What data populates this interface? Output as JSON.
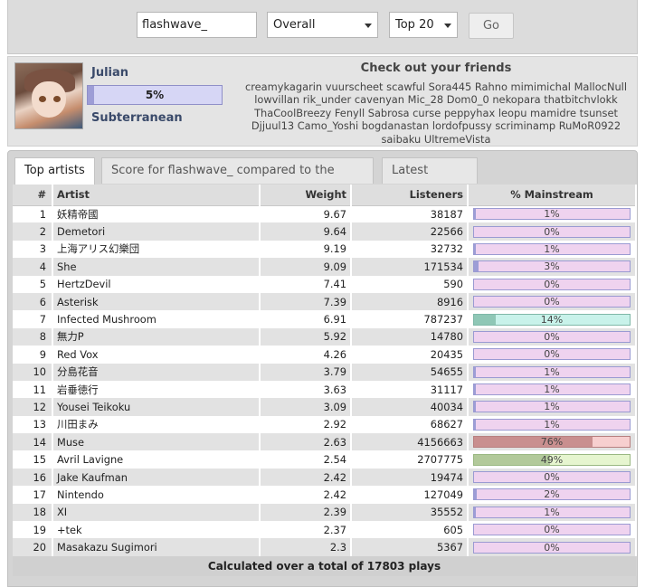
{
  "search": {
    "username": "flashwave_",
    "period": "Overall",
    "limit": "Top 20",
    "go_label": "Go"
  },
  "profile": {
    "name": "Julian",
    "mainstream_percent": "5%",
    "mainstream_fraction": 0.05,
    "rank": "Subterranean",
    "avatar": "anime-avatar"
  },
  "friends": {
    "title": "Check out your friends",
    "names": "creamykagarin vuurscheet scawful Sora445 Rahno mimimichal MallocNull lowvillan rik_under cavenyan Mic_28 Dom0_0 nekopara thatbitchvlokk ThaCoolBreezy Fenyll Sabrosa curse peppyhax leopu mamidre tsunset Djjuul13 Camo_Yoshi bogdanastan lordofpussy scriminamp RuMoR0922 saibaku UltremeVista"
  },
  "tabs": [
    {
      "label": "Top artists"
    },
    {
      "label": "Score for flashwave_ compared to the crowd"
    },
    {
      "label": "Latest scores"
    }
  ],
  "table": {
    "headers": [
      "#",
      "Artist",
      "Weight",
      "Listeners",
      "% Mainstream"
    ],
    "rows": [
      {
        "rank": "1",
        "artist": "妖精帝國",
        "weight": "9.67",
        "listeners": "38187",
        "mainstream": "1%",
        "level": 0.01,
        "color": "purple"
      },
      {
        "rank": "2",
        "artist": "Demetori",
        "weight": "9.64",
        "listeners": "22566",
        "mainstream": "0%",
        "level": 0.0,
        "color": "purple"
      },
      {
        "rank": "3",
        "artist": "上海アリス幻樂団",
        "weight": "9.19",
        "listeners": "32732",
        "mainstream": "1%",
        "level": 0.01,
        "color": "purple"
      },
      {
        "rank": "4",
        "artist": "She",
        "weight": "9.09",
        "listeners": "171534",
        "mainstream": "3%",
        "level": 0.03,
        "color": "purple"
      },
      {
        "rank": "5",
        "artist": "HertzDevil",
        "weight": "7.41",
        "listeners": "590",
        "mainstream": "0%",
        "level": 0.0,
        "color": "purple"
      },
      {
        "rank": "6",
        "artist": "Asterisk",
        "weight": "7.39",
        "listeners": "8916",
        "mainstream": "0%",
        "level": 0.0,
        "color": "purple"
      },
      {
        "rank": "7",
        "artist": "Infected Mushroom",
        "weight": "6.91",
        "listeners": "787237",
        "mainstream": "14%",
        "level": 0.14,
        "color": "teal"
      },
      {
        "rank": "8",
        "artist": "無力P",
        "weight": "5.92",
        "listeners": "14780",
        "mainstream": "0%",
        "level": 0.0,
        "color": "purple"
      },
      {
        "rank": "9",
        "artist": "Red Vox",
        "weight": "4.26",
        "listeners": "20435",
        "mainstream": "0%",
        "level": 0.0,
        "color": "purple"
      },
      {
        "rank": "10",
        "artist": "分島花音",
        "weight": "3.79",
        "listeners": "54655",
        "mainstream": "1%",
        "level": 0.01,
        "color": "purple"
      },
      {
        "rank": "11",
        "artist": "岩垂徳行",
        "weight": "3.63",
        "listeners": "31117",
        "mainstream": "1%",
        "level": 0.01,
        "color": "purple"
      },
      {
        "rank": "12",
        "artist": "Yousei Teikoku",
        "weight": "3.09",
        "listeners": "40034",
        "mainstream": "1%",
        "level": 0.01,
        "color": "purple"
      },
      {
        "rank": "13",
        "artist": "川田まみ",
        "weight": "2.92",
        "listeners": "68627",
        "mainstream": "1%",
        "level": 0.01,
        "color": "purple"
      },
      {
        "rank": "14",
        "artist": "Muse",
        "weight": "2.63",
        "listeners": "4156663",
        "mainstream": "76%",
        "level": 0.76,
        "color": "red"
      },
      {
        "rank": "15",
        "artist": "Avril Lavigne",
        "weight": "2.54",
        "listeners": "2707775",
        "mainstream": "49%",
        "level": 0.49,
        "color": "green"
      },
      {
        "rank": "16",
        "artist": "Jake Kaufman",
        "weight": "2.42",
        "listeners": "19474",
        "mainstream": "0%",
        "level": 0.0,
        "color": "purple"
      },
      {
        "rank": "17",
        "artist": "Nintendo",
        "weight": "2.42",
        "listeners": "127049",
        "mainstream": "2%",
        "level": 0.02,
        "color": "purple"
      },
      {
        "rank": "18",
        "artist": "XI",
        "weight": "2.39",
        "listeners": "35552",
        "mainstream": "1%",
        "level": 0.01,
        "color": "purple"
      },
      {
        "rank": "19",
        "artist": "+tek",
        "weight": "2.37",
        "listeners": "605",
        "mainstream": "0%",
        "level": 0.0,
        "color": "purple"
      },
      {
        "rank": "20",
        "artist": "Masakazu Sugimori",
        "weight": "2.3",
        "listeners": "5367",
        "mainstream": "0%",
        "level": 0.0,
        "color": "purple"
      }
    ],
    "footer": "Calculated over a total of 17803 plays"
  },
  "colors": {
    "purple": {
      "fill": "#9d9dd6",
      "bg": "#efd3ef",
      "border": "#9a9ad2"
    },
    "teal": {
      "fill": "#8fc7b6",
      "bg": "#c8f2ea",
      "border": "#7fb8a8"
    },
    "red": {
      "fill": "#c98f8f",
      "bg": "#f7cfcf",
      "border": "#b88080"
    },
    "green": {
      "fill": "#b2c99a",
      "bg": "#e6f5cf",
      "border": "#9ab882"
    }
  }
}
